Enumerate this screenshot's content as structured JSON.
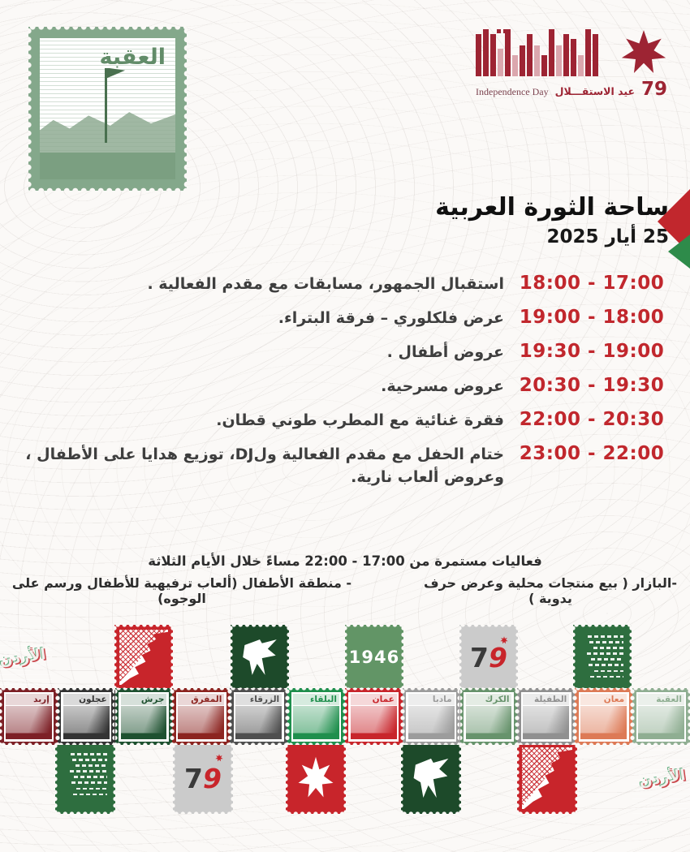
{
  "header": {
    "aqaba_stamp_label": "العقبة",
    "logo": {
      "number": "79",
      "arabic": "عيد الاستقـــلال",
      "english": "Independence Day"
    }
  },
  "event": {
    "title": "ساحة الثورة العربية",
    "date": "25 أيار 2025"
  },
  "schedule": [
    {
      "time": "18:00 - 17:00",
      "desc": "استقبال الجمهور، مسابقات مع مقدم الفعالية ."
    },
    {
      "time": "19:00 - 18:00",
      "desc": "عرض فلكلوري – فرقة البتراء."
    },
    {
      "time": "19:30 - 19:00",
      "desc": "عروض أطفال ."
    },
    {
      "time": "20:30 - 19:30",
      "desc": "عروض مسرحية."
    },
    {
      "time": "22:00 - 20:30",
      "desc": "فقرة غنائية مع المطرب طوني قطان."
    },
    {
      "time": "23:00 - 22:00",
      "desc": "ختام الحفل مع مقدم الفعالية  ولDJ، توزيع هدايا على الأطفال ، وعروض ألعاب نارية."
    }
  ],
  "notes": {
    "continuous": "فعاليات مستمرة من 17:00 - 22:00 مساءً خلال الأيام الثلاثة",
    "bazaar": "-البازار ( بيع منتجات محلية وعرض حرف يدوية )",
    "kids_zone": "- منطقة الأطفال (ألعاب ترفيهية للأطفال ورسم على الوجوه)"
  },
  "stamps": {
    "jordan_label": "الأردن",
    "year_label": "1946",
    "number_label": "79",
    "cities": [
      {
        "name": "إربد",
        "color": "#7d2026"
      },
      {
        "name": "عجلون",
        "color": "#333333"
      },
      {
        "name": "جرش",
        "color": "#1e5130"
      },
      {
        "name": "المفرق",
        "color": "#8c2420"
      },
      {
        "name": "الزرقاء",
        "color": "#4f4f4f"
      },
      {
        "name": "البلقاء",
        "color": "#1f8f4d"
      },
      {
        "name": "عمان",
        "color": "#c8252b"
      },
      {
        "name": "مادبا",
        "color": "#9c9c9c"
      },
      {
        "name": "الكرك",
        "color": "#67936c"
      },
      {
        "name": "الطفيلة",
        "color": "#909090"
      },
      {
        "name": "معان",
        "color": "#dd7a56"
      },
      {
        "name": "العقبة",
        "color": "#8fae92"
      }
    ],
    "row_top": [
      "jordan-text",
      "keffiyeh",
      "map",
      "year",
      "seventy-nine",
      "anthem"
    ],
    "row_bottom": [
      "anthem",
      "seventy-nine",
      "star",
      "map",
      "keffiyeh",
      "jordan-text"
    ]
  },
  "colors": {
    "red": "#c1272d",
    "dark_red": "#9d2433",
    "green": "#2e8b4a",
    "dark_green": "#1d4a2a",
    "text_dark": "#3e3e3e",
    "sage": "#84a88b"
  }
}
